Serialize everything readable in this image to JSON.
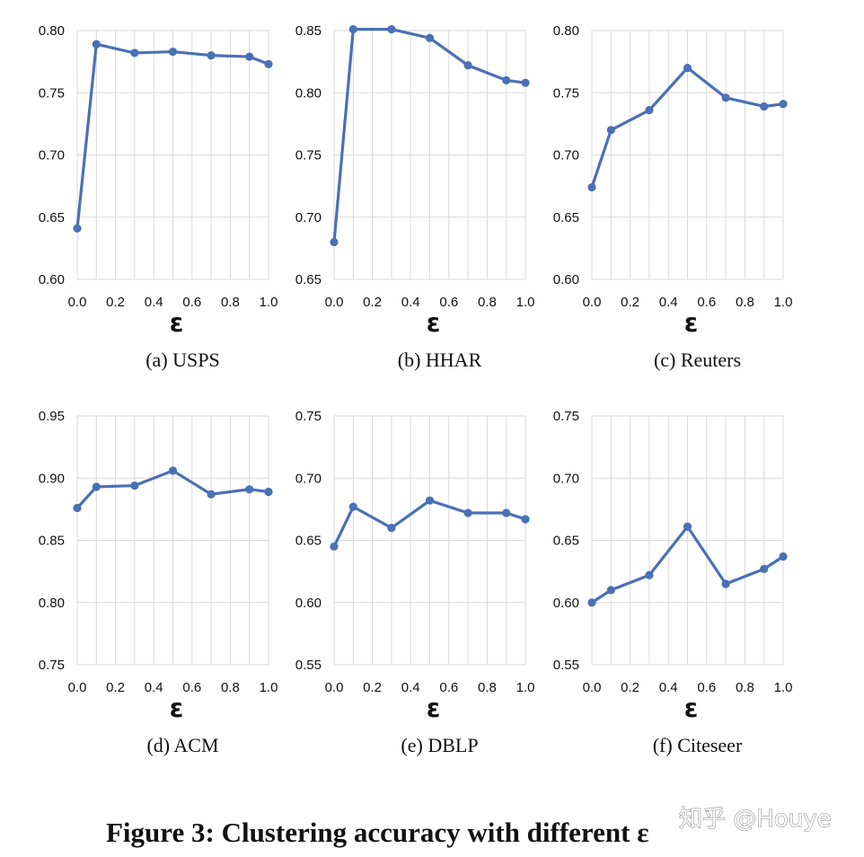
{
  "chart_data": [
    {
      "type": "line",
      "id": "usps",
      "caption": "(a)  USPS",
      "xlabel": "ε",
      "x": [
        0.0,
        0.1,
        0.3,
        0.5,
        0.7,
        0.9,
        1.0
      ],
      "values": [
        0.641,
        0.789,
        0.782,
        0.783,
        0.78,
        0.779,
        0.773
      ],
      "xlim": [
        0,
        1
      ],
      "ylim": [
        0.6,
        0.8
      ],
      "xticks": [
        "0.0",
        "0.2",
        "0.4",
        "0.6",
        "0.8",
        "1.0"
      ],
      "yticks": [
        "0.60",
        "0.65",
        "0.70",
        "0.75",
        "0.80"
      ]
    },
    {
      "type": "line",
      "id": "hhar",
      "caption": "(b)  HHAR",
      "xlabel": "ε",
      "x": [
        0.0,
        0.1,
        0.3,
        0.5,
        0.7,
        0.9,
        1.0
      ],
      "values": [
        0.68,
        0.851,
        0.851,
        0.844,
        0.822,
        0.81,
        0.808
      ],
      "xlim": [
        0,
        1
      ],
      "ylim": [
        0.65,
        0.85
      ],
      "xticks": [
        "0.0",
        "0.2",
        "0.4",
        "0.6",
        "0.8",
        "1.0"
      ],
      "yticks": [
        "0.65",
        "0.70",
        "0.75",
        "0.80",
        "0.85"
      ]
    },
    {
      "type": "line",
      "id": "reuters",
      "caption": "(c)  Reuters",
      "xlabel": "ε",
      "x": [
        0.0,
        0.1,
        0.3,
        0.5,
        0.7,
        0.9,
        1.0
      ],
      "values": [
        0.674,
        0.72,
        0.736,
        0.77,
        0.746,
        0.739,
        0.741
      ],
      "xlim": [
        0,
        1
      ],
      "ylim": [
        0.6,
        0.8
      ],
      "xticks": [
        "0.0",
        "0.2",
        "0.4",
        "0.6",
        "0.8",
        "1.0"
      ],
      "yticks": [
        "0.60",
        "0.65",
        "0.70",
        "0.75",
        "0.80"
      ]
    },
    {
      "type": "line",
      "id": "acm",
      "caption": "(d)  ACM",
      "xlabel": "ε",
      "x": [
        0.0,
        0.1,
        0.3,
        0.5,
        0.7,
        0.9,
        1.0
      ],
      "values": [
        0.876,
        0.893,
        0.894,
        0.906,
        0.887,
        0.891,
        0.889
      ],
      "xlim": [
        0,
        1
      ],
      "ylim": [
        0.75,
        0.95
      ],
      "xticks": [
        "0.0",
        "0.2",
        "0.4",
        "0.6",
        "0.8",
        "1.0"
      ],
      "yticks": [
        "0.75",
        "0.80",
        "0.85",
        "0.90",
        "0.95"
      ]
    },
    {
      "type": "line",
      "id": "dblp",
      "caption": "(e)  DBLP",
      "xlabel": "ε",
      "x": [
        0.0,
        0.1,
        0.3,
        0.5,
        0.7,
        0.9,
        1.0
      ],
      "values": [
        0.645,
        0.677,
        0.66,
        0.682,
        0.672,
        0.672,
        0.667
      ],
      "xlim": [
        0,
        1
      ],
      "ylim": [
        0.55,
        0.75
      ],
      "xticks": [
        "0.0",
        "0.2",
        "0.4",
        "0.6",
        "0.8",
        "1.0"
      ],
      "yticks": [
        "0.55",
        "0.60",
        "0.65",
        "0.70",
        "0.75"
      ]
    },
    {
      "type": "line",
      "id": "citeseer",
      "caption": "(f)  Citeseer",
      "xlabel": "ε",
      "x": [
        0.0,
        0.1,
        0.3,
        0.5,
        0.7,
        0.9,
        1.0
      ],
      "values": [
        0.6,
        0.61,
        0.622,
        0.661,
        0.615,
        0.627,
        0.637
      ],
      "xlim": [
        0,
        1
      ],
      "ylim": [
        0.55,
        0.75
      ],
      "xticks": [
        "0.0",
        "0.2",
        "0.4",
        "0.6",
        "0.8",
        "1.0"
      ],
      "yticks": [
        "0.55",
        "0.60",
        "0.65",
        "0.70",
        "0.75"
      ]
    }
  ],
  "figure_caption": "Figure 3: Clustering accuracy with different ε",
  "watermark": "知乎 @Houye",
  "colors": {
    "series": "#4a70b5",
    "grid": "#d9d9d9",
    "text": "#111111"
  }
}
